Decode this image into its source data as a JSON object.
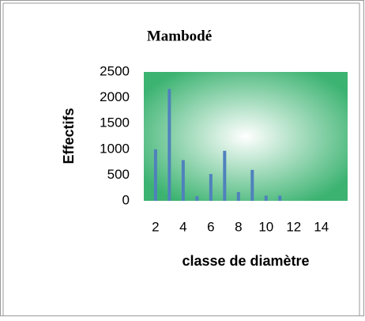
{
  "chart_data": {
    "type": "bar",
    "title": "Mambodé",
    "x": [
      2,
      3,
      4,
      5,
      6,
      7,
      8,
      9,
      10,
      11
    ],
    "values": [
      1000,
      2170,
      790,
      90,
      520,
      970,
      170,
      600,
      100,
      100
    ],
    "color": "#4f81bd",
    "xlabel": "classe de diamètre",
    "ylabel": "Effectifs",
    "xlim": [
      1.15,
      15.9
    ],
    "xticks": [
      2,
      4,
      6,
      8,
      10,
      12,
      14
    ],
    "ylim": [
      0,
      2500
    ],
    "yticks": [
      0,
      500,
      1000,
      1500,
      2000,
      2500
    ]
  }
}
